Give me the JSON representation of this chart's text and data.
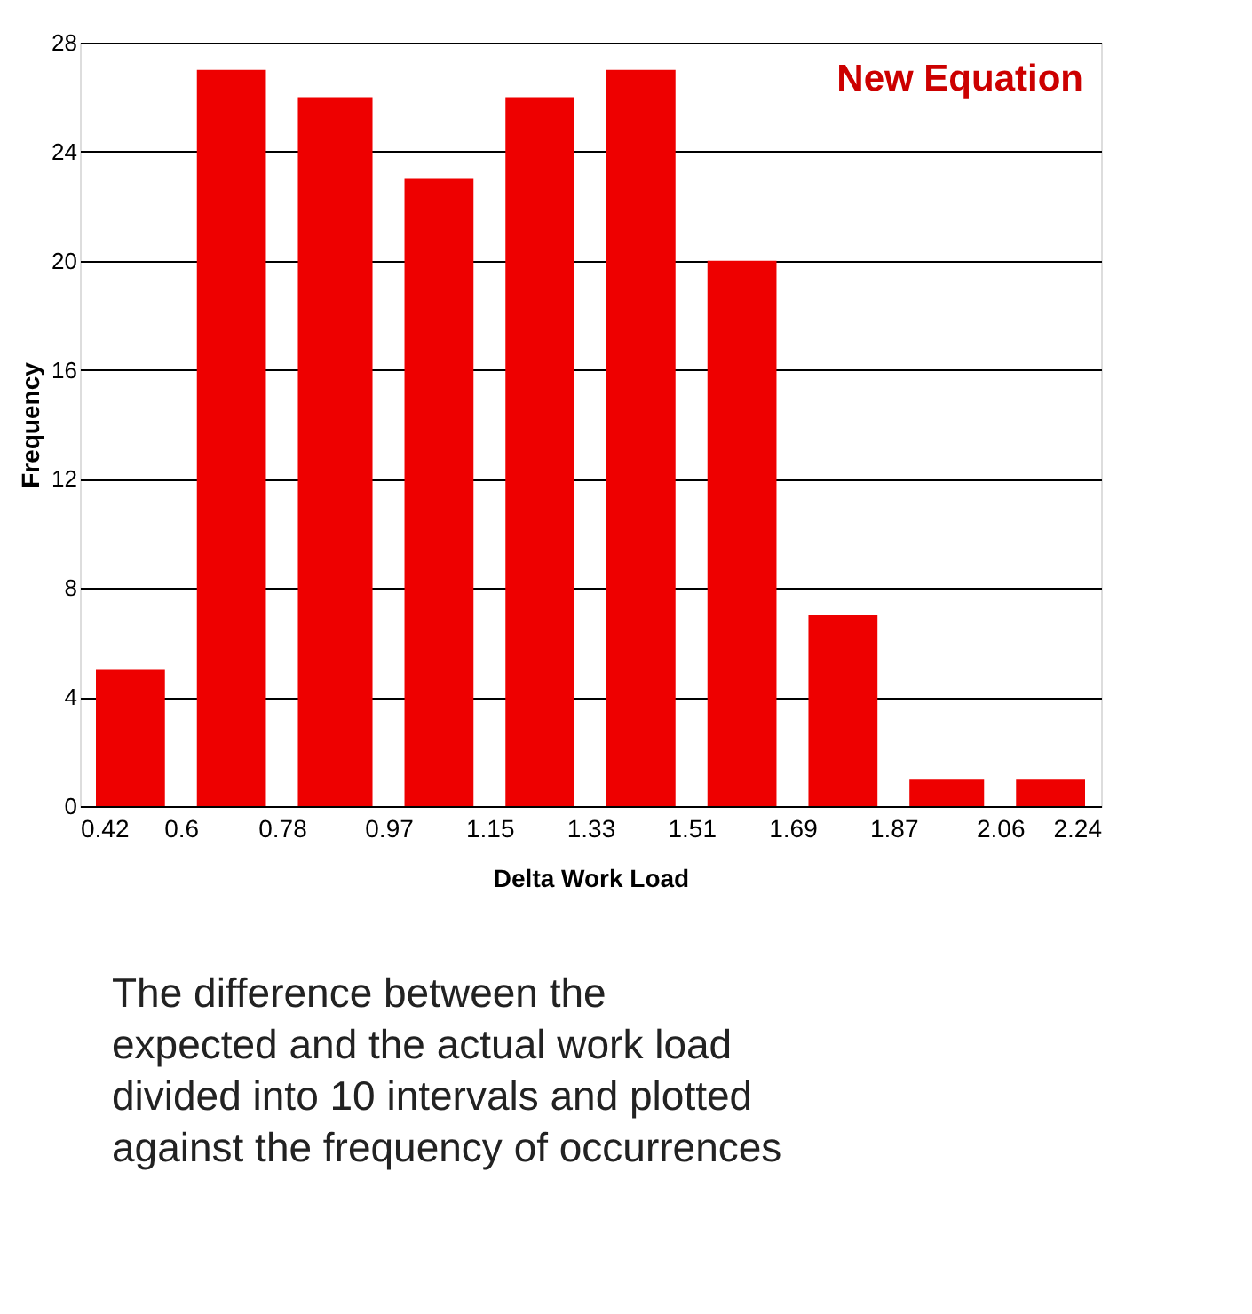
{
  "chart_data": {
    "type": "histogram",
    "xlabel": "Delta Work Load",
    "ylabel": "Frequency",
    "bins": [
      0.42,
      0.6,
      0.78,
      0.97,
      1.15,
      1.33,
      1.51,
      1.69,
      1.87,
      2.06,
      2.24
    ],
    "values": [
      5,
      27,
      26,
      23,
      26,
      27,
      20,
      7,
      1,
      1
    ],
    "color": "#ee0000",
    "xlim": [
      0.42,
      2.24
    ],
    "xticks": [
      0.42,
      0.6,
      0.78,
      0.97,
      1.15,
      1.33,
      1.51,
      1.69,
      1.87,
      2.06,
      2.24
    ],
    "ylim": [
      0,
      28
    ],
    "yticks": [
      0,
      4,
      8,
      12,
      16,
      20,
      24,
      28
    ],
    "grid": "y",
    "annotations": [
      "New Equation",
      "The difference between the\nexpected and the actual work load\ndivided into 10 intervals and plotted\nagainst the frequency of occurrences"
    ]
  }
}
